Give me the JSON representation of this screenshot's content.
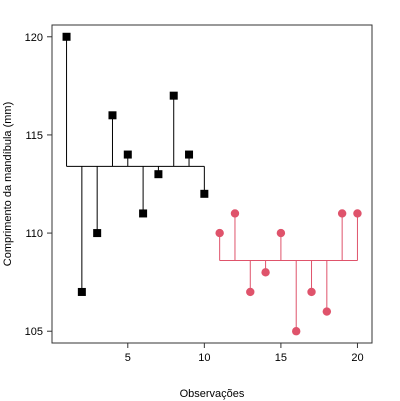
{
  "chart_data": {
    "type": "scatter",
    "xlabel": "Observações",
    "ylabel": "Comprimento da mandíbula (mm)",
    "xlim": [
      0.05,
      20.95
    ],
    "ylim": [
      104.4,
      120.6
    ],
    "xticks": [
      5,
      10,
      15,
      20
    ],
    "yticks": [
      105,
      110,
      115,
      120
    ],
    "grid": false,
    "series": [
      {
        "color": "#000000",
        "marker": "square",
        "mean": 113.4,
        "points": [
          {
            "x": 1,
            "y": 120
          },
          {
            "x": 2,
            "y": 107
          },
          {
            "x": 3,
            "y": 110
          },
          {
            "x": 4,
            "y": 116
          },
          {
            "x": 5,
            "y": 114
          },
          {
            "x": 6,
            "y": 111
          },
          {
            "x": 7,
            "y": 113
          },
          {
            "x": 8,
            "y": 117
          },
          {
            "x": 9,
            "y": 114
          },
          {
            "x": 10,
            "y": 112
          }
        ]
      },
      {
        "color": "#DF536B",
        "marker": "circle",
        "mean": 108.6,
        "points": [
          {
            "x": 11,
            "y": 110
          },
          {
            "x": 12,
            "y": 111
          },
          {
            "x": 13,
            "y": 107
          },
          {
            "x": 14,
            "y": 108
          },
          {
            "x": 15,
            "y": 110
          },
          {
            "x": 16,
            "y": 105
          },
          {
            "x": 17,
            "y": 107
          },
          {
            "x": 18,
            "y": 106
          },
          {
            "x": 19,
            "y": 111
          },
          {
            "x": 20,
            "y": 111
          }
        ]
      }
    ]
  }
}
